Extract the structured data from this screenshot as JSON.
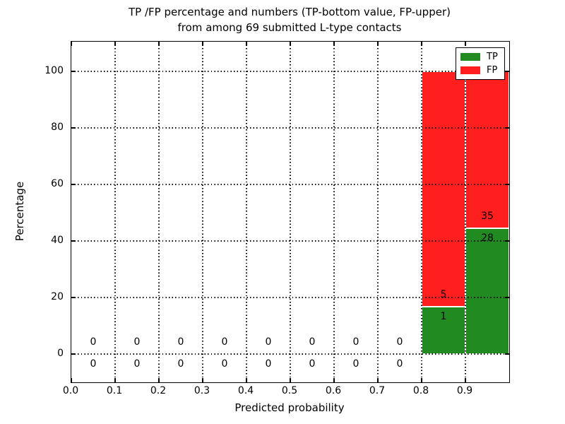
{
  "figure": {
    "title_line1": "TP /FP percentage and numbers (TP-bottom value, FP-upper)",
    "title_line2": "from among 69 submitted L-type contacts"
  },
  "legend": {
    "items": [
      {
        "label": "TP",
        "color": "#218b21"
      },
      {
        "label": "FP",
        "color": "#ff1f1f"
      }
    ]
  },
  "chart_data": {
    "type": "bar",
    "stacked": true,
    "title": "TP /FP percentage and numbers (TP-bottom value, FP-upper) from among 69 submitted L-type contacts",
    "xlabel": "Predicted probability",
    "ylabel": "Percentage",
    "xlim": [
      0.0,
      1.0
    ],
    "ylim": [
      -10,
      110
    ],
    "x_ticks": [
      "0.0",
      "0.1",
      "0.2",
      "0.3",
      "0.4",
      "0.5",
      "0.6",
      "0.7",
      "0.8",
      "0.9"
    ],
    "y_ticks": [
      0,
      20,
      40,
      60,
      80,
      100
    ],
    "grid": "dotted black, drawn above bars",
    "legend_position": "upper right",
    "total_contacts": 69,
    "bin_width": 0.1,
    "colors": {
      "tp": "#218b21",
      "fp": "#ff1f1f"
    },
    "bins": [
      {
        "x_start": 0.0,
        "x_end": 0.1,
        "tp_count": 0,
        "fp_count": 0,
        "tp_pct": 0,
        "fp_pct": 0
      },
      {
        "x_start": 0.1,
        "x_end": 0.2,
        "tp_count": 0,
        "fp_count": 0,
        "tp_pct": 0,
        "fp_pct": 0
      },
      {
        "x_start": 0.2,
        "x_end": 0.3,
        "tp_count": 0,
        "fp_count": 0,
        "tp_pct": 0,
        "fp_pct": 0
      },
      {
        "x_start": 0.3,
        "x_end": 0.4,
        "tp_count": 0,
        "fp_count": 0,
        "tp_pct": 0,
        "fp_pct": 0
      },
      {
        "x_start": 0.4,
        "x_end": 0.5,
        "tp_count": 0,
        "fp_count": 0,
        "tp_pct": 0,
        "fp_pct": 0
      },
      {
        "x_start": 0.5,
        "x_end": 0.6,
        "tp_count": 0,
        "fp_count": 0,
        "tp_pct": 0,
        "fp_pct": 0
      },
      {
        "x_start": 0.6,
        "x_end": 0.7,
        "tp_count": 0,
        "fp_count": 0,
        "tp_pct": 0,
        "fp_pct": 0
      },
      {
        "x_start": 0.7,
        "x_end": 0.8,
        "tp_count": 0,
        "fp_count": 0,
        "tp_pct": 0,
        "fp_pct": 0
      },
      {
        "x_start": 0.8,
        "x_end": 0.9,
        "tp_count": 1,
        "fp_count": 5,
        "tp_pct": 16.67,
        "fp_pct": 83.33
      },
      {
        "x_start": 0.9,
        "x_end": 1.0,
        "tp_count": 28,
        "fp_count": 35,
        "tp_pct": 44.44,
        "fp_pct": 55.56
      }
    ],
    "series": [
      {
        "name": "TP",
        "counts": [
          0,
          0,
          0,
          0,
          0,
          0,
          0,
          0,
          1,
          28
        ],
        "values_pct": [
          0,
          0,
          0,
          0,
          0,
          0,
          0,
          0,
          16.67,
          44.44
        ]
      },
      {
        "name": "FP",
        "counts": [
          0,
          0,
          0,
          0,
          0,
          0,
          0,
          0,
          5,
          35
        ],
        "values_pct": [
          0,
          0,
          0,
          0,
          0,
          0,
          0,
          0,
          83.33,
          55.56
        ]
      }
    ]
  }
}
